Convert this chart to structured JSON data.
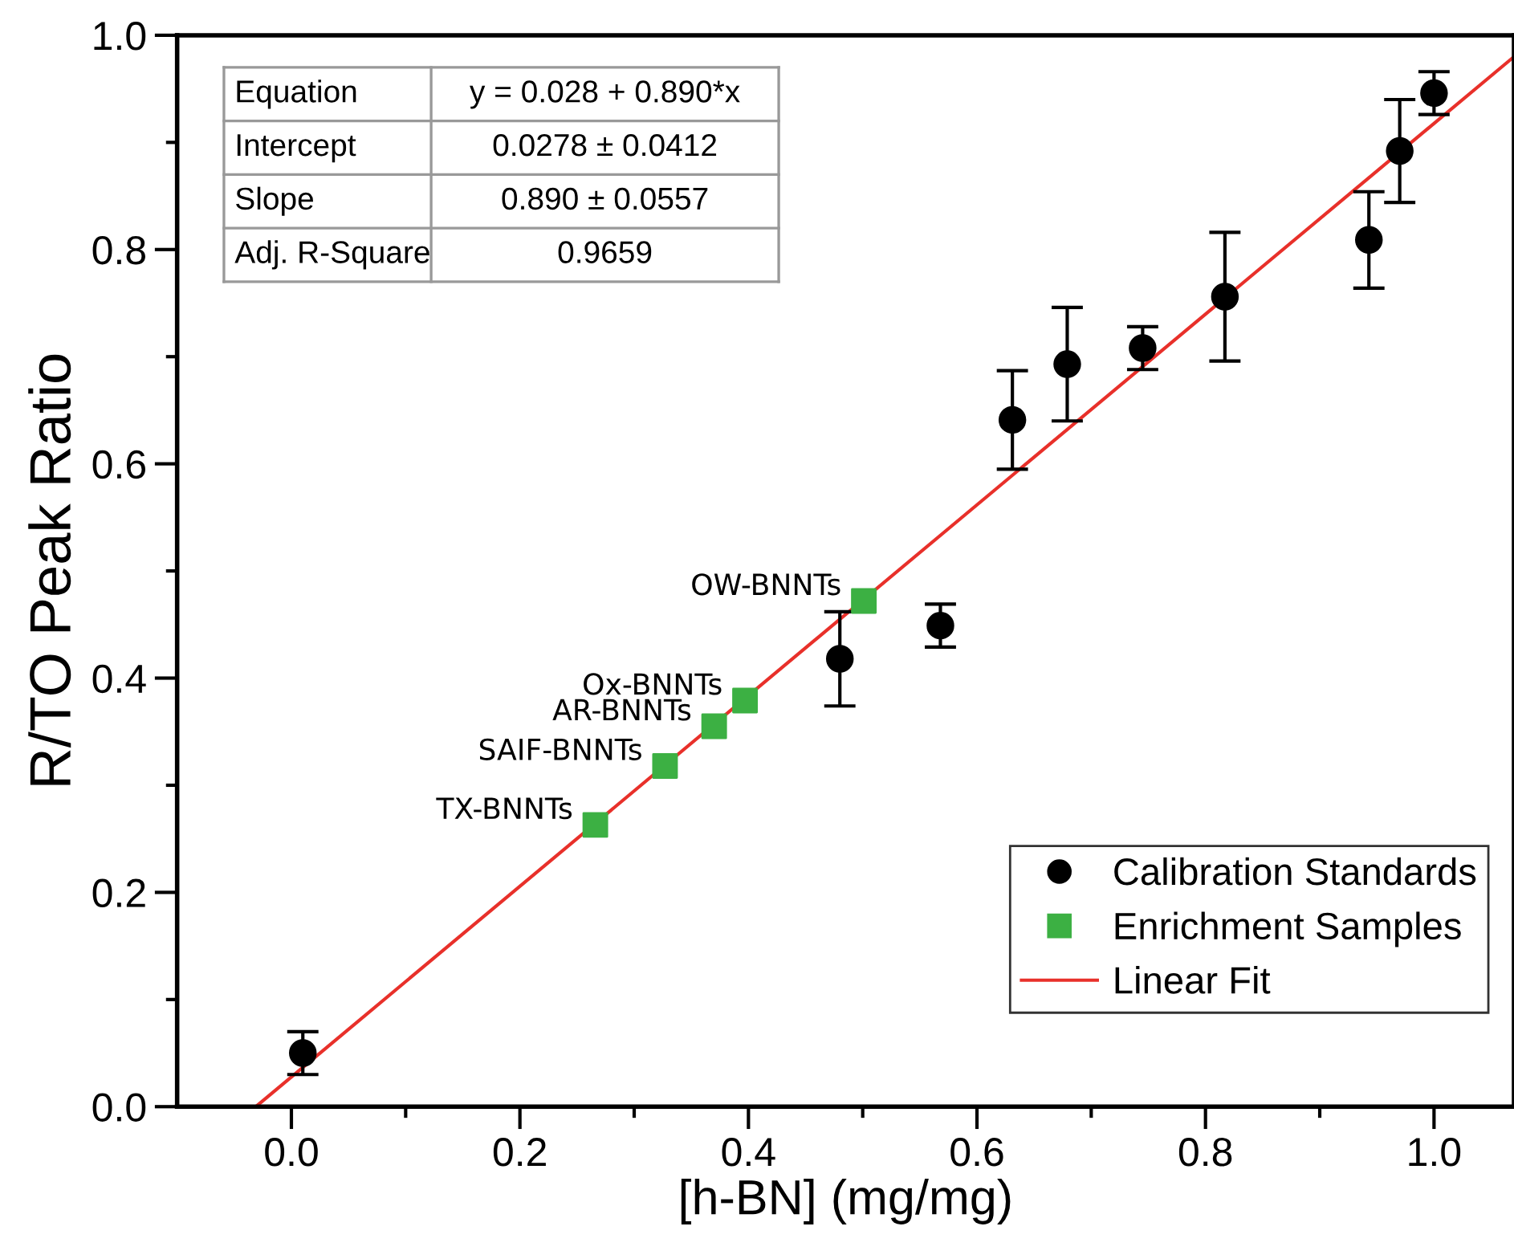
{
  "chart_data": {
    "type": "scatter",
    "xlabel": "[h-BN] (mg/mg)",
    "ylabel": "R/TO Peak Ratio",
    "xlim": [
      -0.1,
      1.07
    ],
    "ylim": [
      0,
      1.0
    ],
    "xticks": [
      {
        "value": 0,
        "label": "0.0"
      },
      {
        "value": 0.1,
        "label": null
      },
      0.2,
      {
        "value": 0.3,
        "label": null
      },
      0.4,
      {
        "value": 0.5,
        "label": null
      },
      0.6,
      {
        "value": 0.7,
        "label": null
      },
      0.8,
      {
        "value": 0.9,
        "label": null
      },
      {
        "value": 1,
        "label": "1.0"
      }
    ],
    "yticks": [
      {
        "value": 0,
        "label": "0.0"
      },
      {
        "value": 0.1,
        "label": null
      },
      0.2,
      {
        "value": 0.3,
        "label": null
      },
      0.4,
      {
        "value": 0.5,
        "label": null
      },
      0.6,
      {
        "value": 0.7,
        "label": null
      },
      0.8,
      {
        "value": 0.9,
        "label": null
      },
      {
        "value": 1,
        "label": "1.0"
      }
    ],
    "legend": "bottom right",
    "grid": false,
    "series": [
      {
        "name": "Calibration Standards",
        "marker": "circle",
        "color": "#000000",
        "x": [
          0.01,
          0.48,
          0.568,
          0.631,
          0.679,
          0.745,
          0.817,
          0.943,
          0.97,
          1.0
        ],
        "values": [
          0.05,
          0.418,
          0.449,
          0.641,
          0.693,
          0.708,
          0.756,
          0.809,
          0.892,
          0.946
        ],
        "errors": [
          0.02,
          0.044,
          0.02,
          0.046,
          0.053,
          0.02,
          0.06,
          0.045,
          0.048,
          0.02
        ]
      },
      {
        "name": "Enrichment Samples",
        "marker": "square",
        "color": "#3cb043",
        "x": [
          0.266,
          0.327,
          0.37,
          0.397,
          0.501
        ],
        "values": [
          0.263,
          0.318,
          0.355,
          0.379,
          0.472
        ]
      },
      {
        "name": "Linear Fit",
        "type": "line",
        "marker": "none",
        "line_style": "solid",
        "color": "#e8302a",
        "x": [
          -0.03,
          1.07
        ],
        "values": [
          0.001,
          0.98
        ]
      }
    ],
    "annotations": [
      "Equation",
      "y = 0.028 + 0.890*x",
      "Intercept",
      "0.0278 ± 0.0412",
      "Slope",
      "0.890 ± 0.0557",
      "Adj. R-Square",
      "0.9659",
      {
        "text": "TX-BNNTs",
        "x": 0.266,
        "y": 0.263
      },
      {
        "text": "SAIF-BNNTs",
        "x": 0.327,
        "y": 0.318
      },
      {
        "text": "AR-BNNTs",
        "x": 0.37,
        "y": 0.355
      },
      {
        "text": "Ox-BNNTs",
        "x": 0.397,
        "y": 0.379
      },
      {
        "text": "OW-BNNTs",
        "x": 0.501,
        "y": 0.472
      }
    ]
  }
}
